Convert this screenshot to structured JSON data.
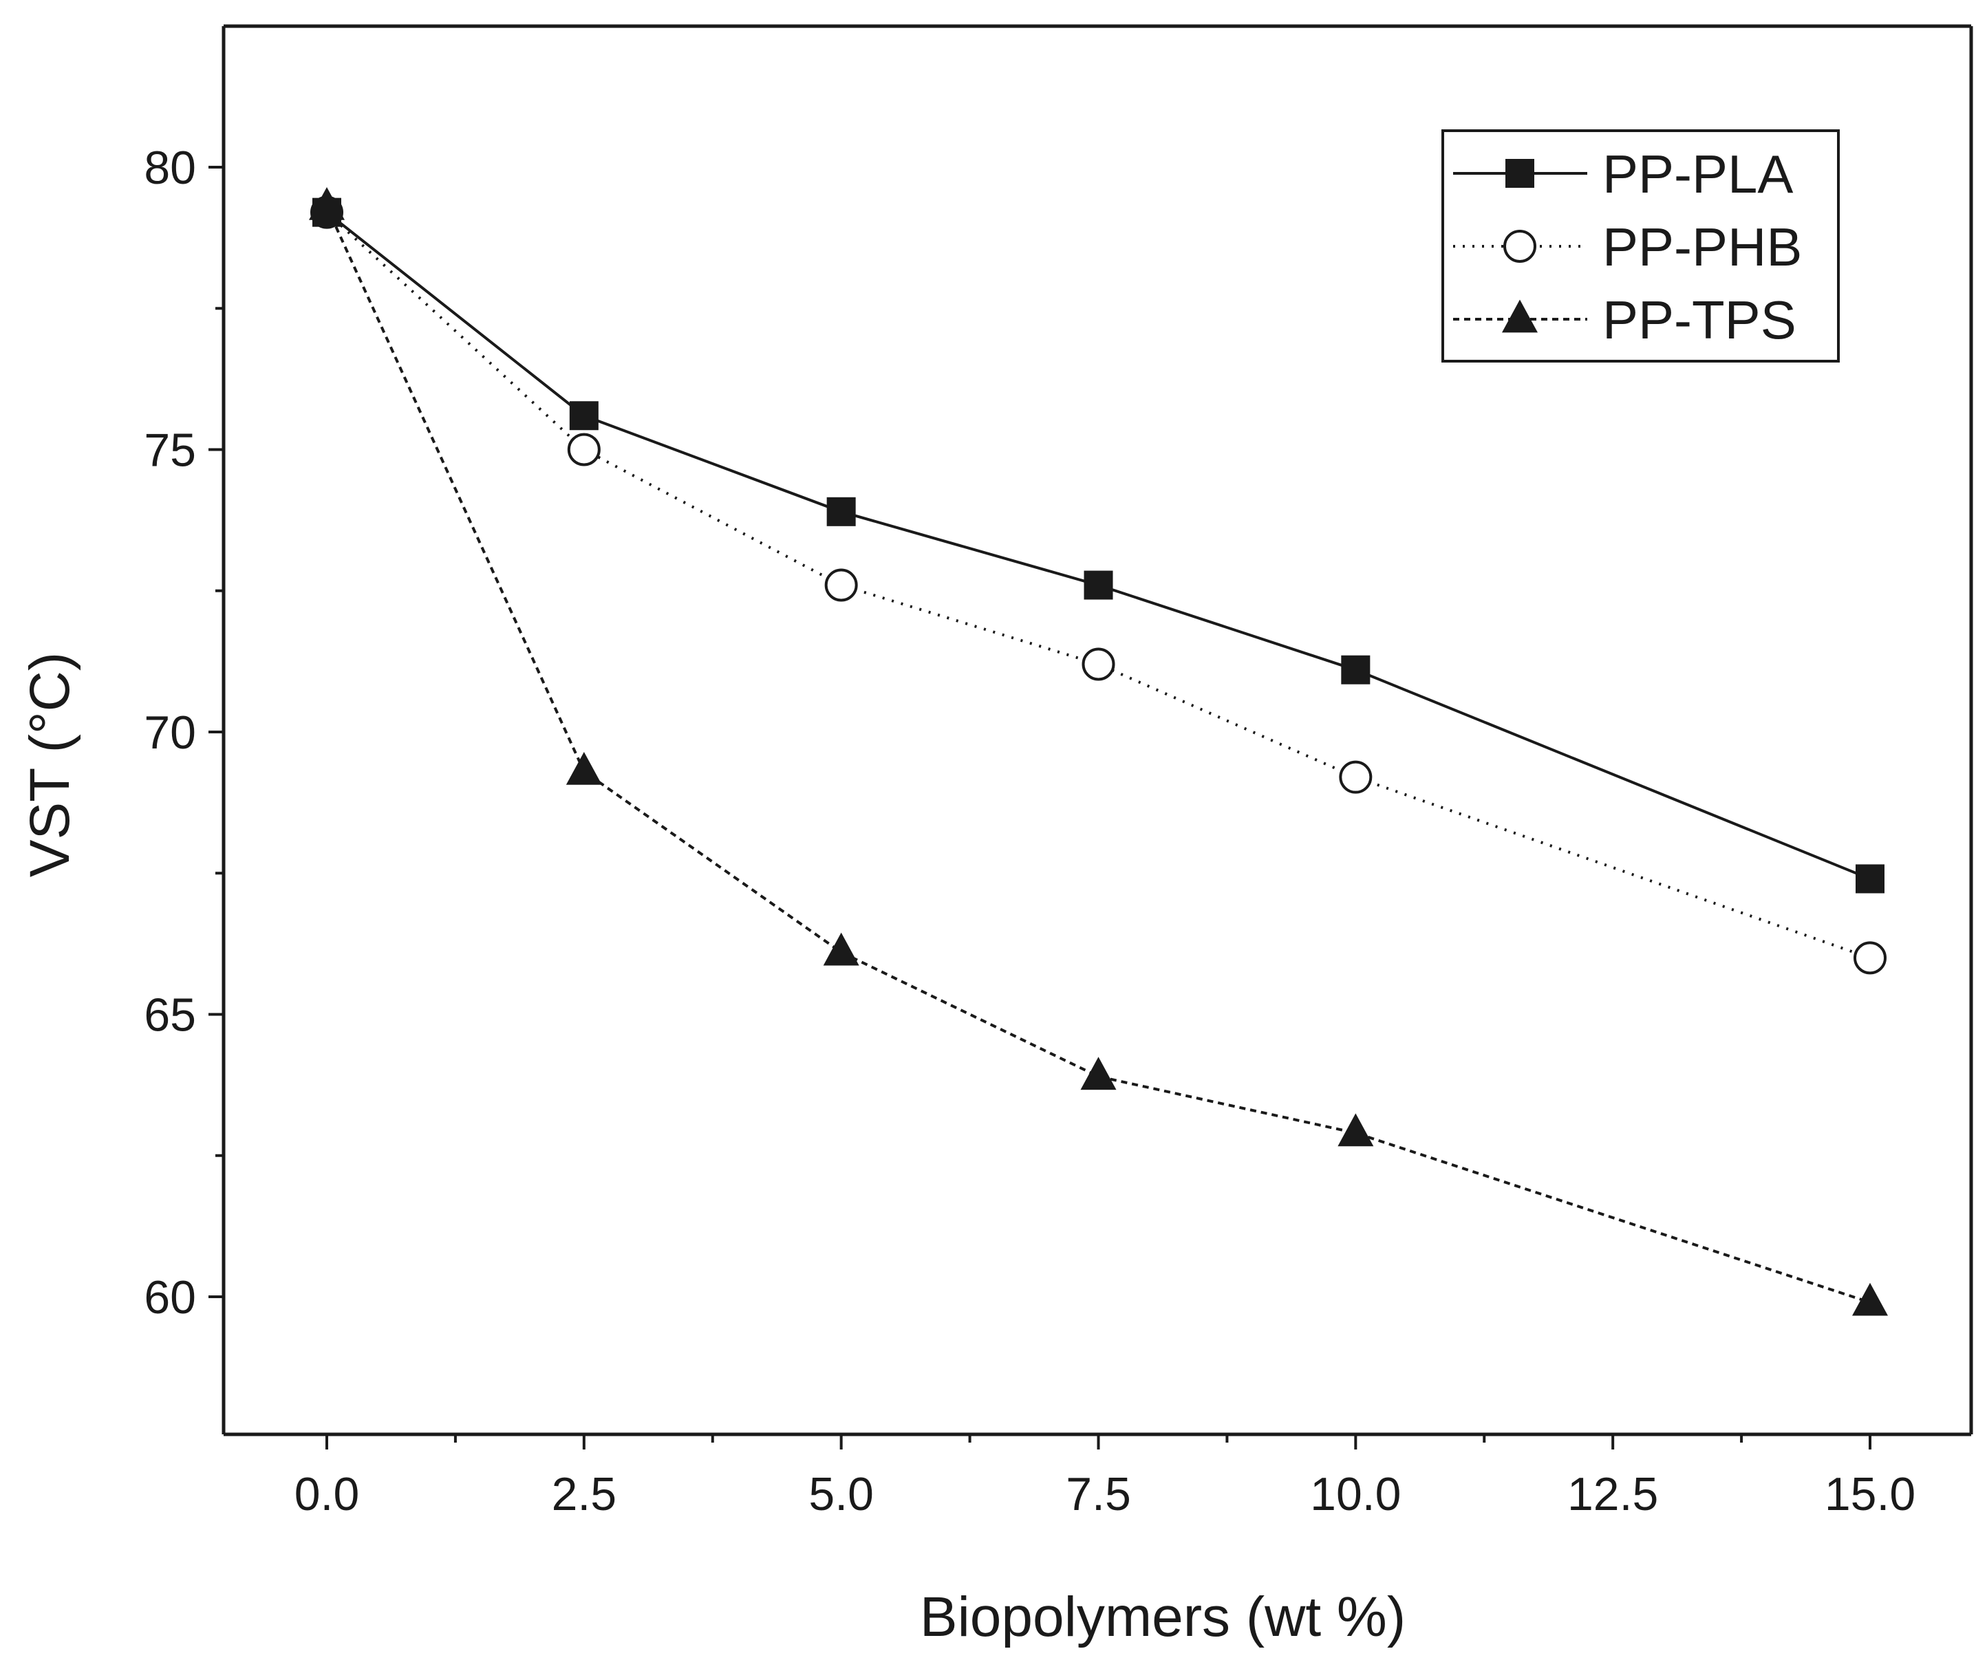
{
  "chart_data": {
    "type": "line",
    "title": "",
    "xlabel": "Biopolymers (wt %)",
    "ylabel": "VST (°C)",
    "xlim": [
      -1,
      16.0
    ],
    "ylim": [
      57.5,
      82.5
    ],
    "x_ticks": [
      0.0,
      2.5,
      5.0,
      7.5,
      10.0,
      12.5,
      15.0
    ],
    "x_tick_labels": [
      "0.0",
      "2.5",
      "5.0",
      "7.5",
      "10.0",
      "12.5",
      "15.0"
    ],
    "x_minor_ticks": [
      1.25,
      3.75,
      6.25,
      8.75,
      11.25,
      13.75
    ],
    "y_ticks": [
      60,
      65,
      70,
      75,
      80
    ],
    "y_tick_labels": [
      "60",
      "65",
      "70",
      "75",
      "80"
    ],
    "y_minor_ticks": [
      62.5,
      67.5,
      72.5,
      77.5
    ],
    "grid": false,
    "legend_position": "top-right",
    "x": [
      0.0,
      2.5,
      5.0,
      7.5,
      10.0,
      15.0
    ],
    "series": [
      {
        "name": "PP-PLA",
        "marker": "filled-square",
        "line_style": "solid",
        "values": [
          79.2,
          75.6,
          73.9,
          72.6,
          71.1,
          67.4
        ]
      },
      {
        "name": "PP-PHB",
        "marker": "open-circle",
        "line_style": "dotted",
        "values": [
          79.2,
          75.0,
          72.6,
          71.2,
          69.2,
          66.0
        ]
      },
      {
        "name": "PP-TPS",
        "marker": "filled-triangle",
        "line_style": "dashed",
        "values": [
          79.3,
          69.3,
          66.1,
          63.9,
          62.9,
          59.9
        ]
      }
    ]
  }
}
